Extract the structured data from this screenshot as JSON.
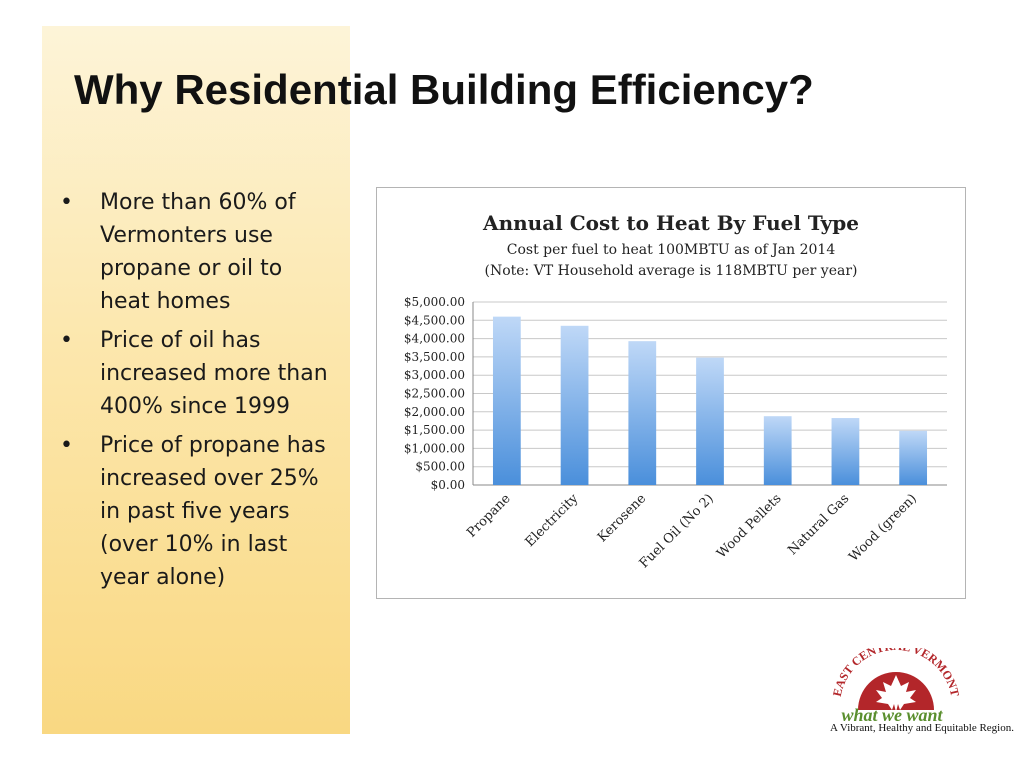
{
  "slide": {
    "title": "Why Residential Building Efficiency?",
    "bullets": [
      "More than 60% of Vermonters use propane or oil to heat homes",
      "Price of oil has increased more than 400% since 1999",
      "Price of propane has increased over 25% in past five years (over 10% in last year alone)"
    ],
    "bullet_glyph": "•"
  },
  "logo": {
    "arc_text": "EAST CENTRAL VERMONT",
    "script_text": "what we want",
    "tagline": "A Vibrant, Healthy and Equitable Region.",
    "colors": {
      "red": "#b3262a",
      "green": "#5a8f2e",
      "white": "#ffffff"
    }
  },
  "colors": {
    "bar_top": "#bfd8f7",
    "bar_bottom": "#4a8fdb",
    "band_top": "#fdf4d8",
    "band_bottom": "#f9d882"
  },
  "chart_data": {
    "type": "bar",
    "title": "Annual Cost to Heat By Fuel Type",
    "subtitle_lines": [
      "Cost per fuel to heat 100MBTU as of Jan 2014",
      "(Note: VT Household average is 118MBTU per year)"
    ],
    "categories": [
      "Propane",
      "Electricity",
      "Kerosene",
      "Fuel Oil (No 2)",
      "Wood Pellets",
      "Natural Gas",
      "Wood (green)"
    ],
    "values": [
      4600,
      4350,
      3930,
      3480,
      1880,
      1830,
      1480
    ],
    "ylim": [
      0,
      5000
    ],
    "yticks": [
      "$0.00",
      "$500.00",
      "$1,000.00",
      "$1,500.00",
      "$2,000.00",
      "$2,500.00",
      "$3,000.00",
      "$3,500.00",
      "$4,000.00",
      "$4,500.00",
      "$5,000.00"
    ],
    "grid": true,
    "legend": false
  }
}
